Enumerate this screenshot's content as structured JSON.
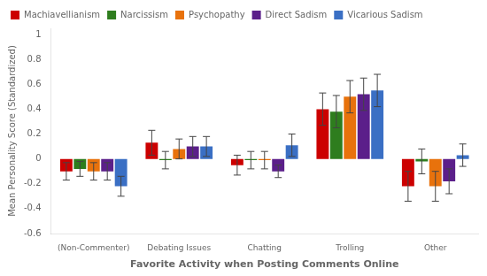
{
  "chart_data": {
    "type": "bar",
    "xlabel": "Favorite Activity when Posting Comments Online",
    "ylabel": "Mean Personality Score (Standardized)",
    "categories": [
      "(Non-Commenter)",
      "Debating Issues",
      "Chatting",
      "Trolling",
      "Other"
    ],
    "series": [
      {
        "name": "Machiavellianism",
        "color": "#cc0000",
        "values": [
          -0.1,
          0.13,
          -0.05,
          0.4,
          -0.22
        ],
        "errors": [
          0.07,
          0.1,
          0.08,
          0.13,
          0.12
        ]
      },
      {
        "name": "Narcissism",
        "color": "#2e7d1e",
        "values": [
          -0.08,
          -0.01,
          -0.01,
          0.38,
          -0.02
        ],
        "errors": [
          0.06,
          0.07,
          0.07,
          0.13,
          0.1
        ]
      },
      {
        "name": "Psychopathy",
        "color": "#e8720c",
        "values": [
          -0.1,
          0.08,
          -0.01,
          0.5,
          -0.22
        ],
        "errors": [
          0.07,
          0.08,
          0.07,
          0.13,
          0.12
        ]
      },
      {
        "name": "Direct Sadism",
        "color": "#5b1f8a",
        "values": [
          -0.1,
          0.1,
          -0.1,
          0.52,
          -0.18
        ],
        "errors": [
          0.07,
          0.08,
          0.05,
          0.13,
          0.1
        ]
      },
      {
        "name": "Vicarious Sadism",
        "color": "#3a6fc4",
        "values": [
          -0.22,
          0.1,
          0.11,
          0.55,
          0.03
        ],
        "errors": [
          0.08,
          0.08,
          0.09,
          0.13,
          0.09
        ]
      }
    ],
    "ylim": [
      -0.6,
      1.05
    ],
    "yticks": [
      -0.6,
      -0.4,
      -0.2,
      0,
      0.2,
      0.4,
      0.6,
      0.8,
      1
    ],
    "grid": false,
    "legend": "upper left"
  }
}
